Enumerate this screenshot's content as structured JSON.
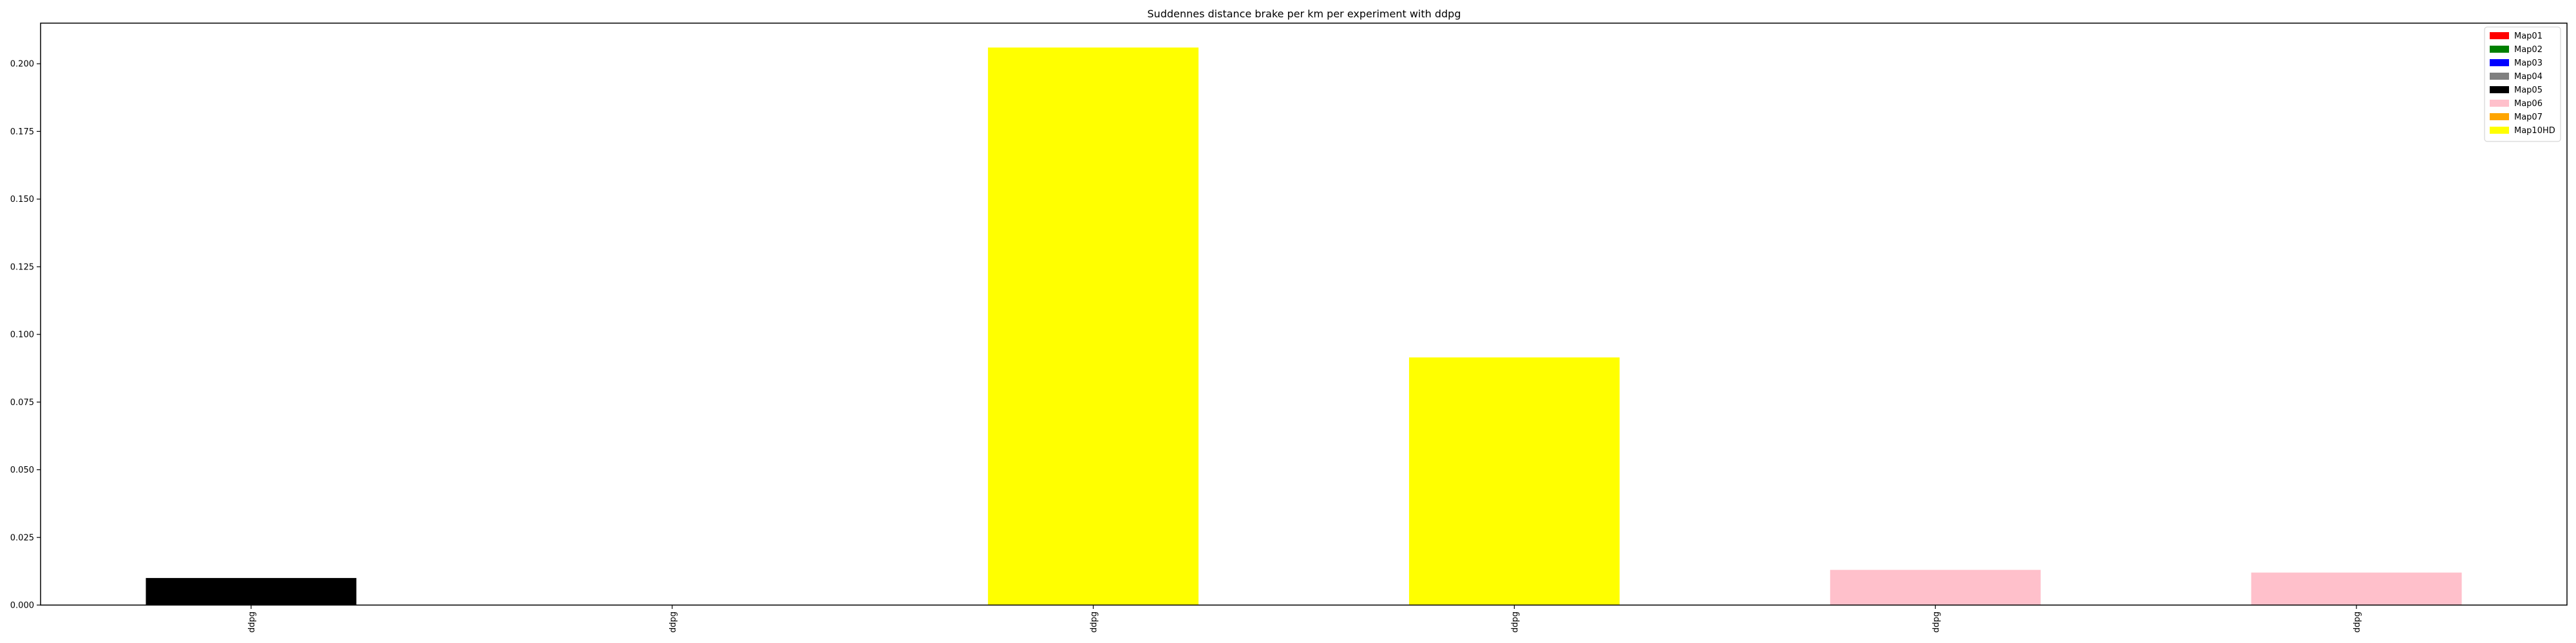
{
  "chart_data": {
    "type": "bar",
    "title": "Suddennes distance brake per km per experiment with ddpg",
    "xlabel": "",
    "ylabel": "",
    "ylim": [
      0,
      0.215
    ],
    "grid": false,
    "legend_position": "top-right",
    "categories": [
      "ddpg",
      "ddpg",
      "ddpg",
      "ddpg",
      "ddpg",
      "ddpg"
    ],
    "bars": [
      {
        "category": "ddpg",
        "value": 0.01,
        "color": "#000000",
        "map": "Map05"
      },
      {
        "category": "ddpg",
        "value": 0.0,
        "color": "#ffffff",
        "map": ""
      },
      {
        "category": "ddpg",
        "value": 0.206,
        "color": "#ffff00",
        "map": "Map10HD"
      },
      {
        "category": "ddpg",
        "value": 0.0915,
        "color": "#ffff00",
        "map": "Map10HD"
      },
      {
        "category": "ddpg",
        "value": 0.013,
        "color": "#ffc0cb",
        "map": "Map06"
      },
      {
        "category": "ddpg",
        "value": 0.012,
        "color": "#ffc0cb",
        "map": "Map06"
      }
    ],
    "y_ticks": [
      {
        "value": 0.0,
        "label": "0.000"
      },
      {
        "value": 0.025,
        "label": "0.025"
      },
      {
        "value": 0.05,
        "label": "0.050"
      },
      {
        "value": 0.075,
        "label": "0.075"
      },
      {
        "value": 0.1,
        "label": "0.100"
      },
      {
        "value": 0.125,
        "label": "0.125"
      },
      {
        "value": 0.15,
        "label": "0.150"
      },
      {
        "value": 0.175,
        "label": "0.175"
      },
      {
        "value": 0.2,
        "label": "0.200"
      }
    ],
    "legend": [
      {
        "label": "Map01",
        "color": "#ff0000"
      },
      {
        "label": "Map02",
        "color": "#008000"
      },
      {
        "label": "Map03",
        "color": "#0000ff"
      },
      {
        "label": "Map04",
        "color": "#808080"
      },
      {
        "label": "Map05",
        "color": "#000000"
      },
      {
        "label": "Map06",
        "color": "#ffc0cb"
      },
      {
        "label": "Map07",
        "color": "#ffa500"
      },
      {
        "label": "Map10HD",
        "color": "#ffff00"
      }
    ]
  }
}
